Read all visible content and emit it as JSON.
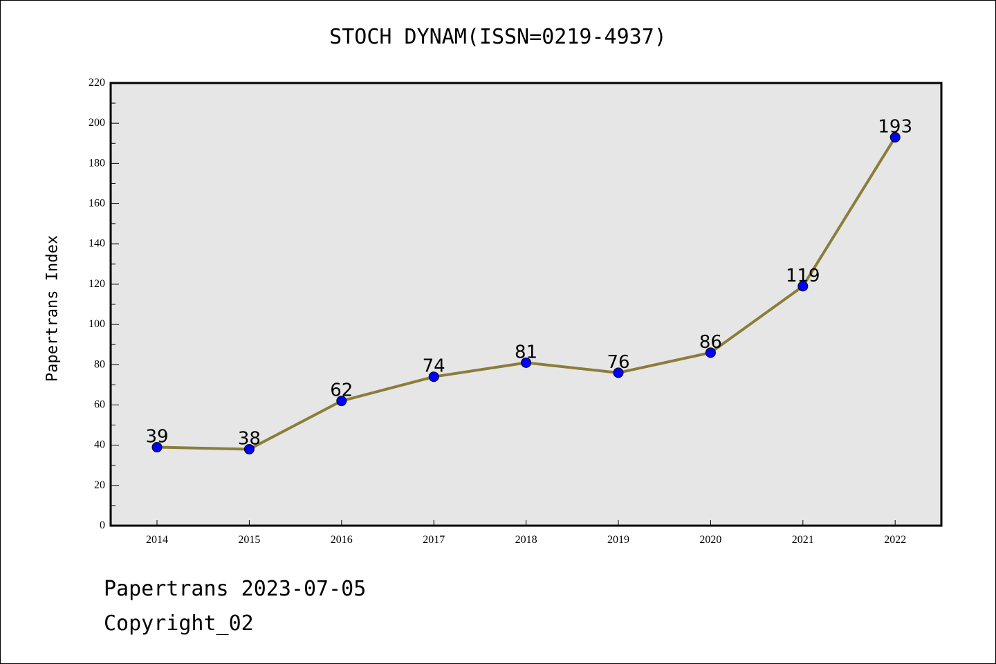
{
  "chart_data": {
    "type": "line",
    "title": "STOCH DYNAM(ISSN=0219-4937)",
    "ylabel": "Papertrans Index",
    "xlabel": "",
    "categories": [
      "2014",
      "2015",
      "2016",
      "2017",
      "2018",
      "2019",
      "2020",
      "2021",
      "2022"
    ],
    "series": [
      {
        "values": [
          39,
          38,
          62,
          74,
          81,
          76,
          86,
          119,
          193
        ],
        "data_labels": [
          "39",
          "38",
          "62",
          "74",
          "81",
          "76",
          "86",
          "119",
          "193"
        ]
      }
    ],
    "ylim": [
      0,
      220
    ],
    "yticks": [
      "0",
      "20",
      "40",
      "60",
      "80",
      "100",
      "120",
      "140",
      "160",
      "180",
      "200",
      "220"
    ],
    "grid": false,
    "colors": {
      "line": "#8B7D3A",
      "marker": "#0000FF",
      "plot_bg": "#E6E6E6"
    }
  },
  "footer": {
    "line1": "Papertrans 2023-07-05",
    "line2": "Copyright_02"
  }
}
